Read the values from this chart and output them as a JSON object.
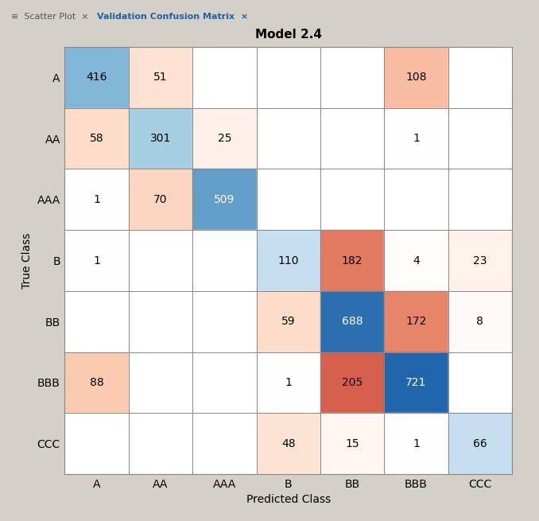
{
  "title": "Model 2.4",
  "classes": [
    "A",
    "AA",
    "AAA",
    "B",
    "BB",
    "BBB",
    "CCC"
  ],
  "matrix": [
    [
      416,
      51,
      0,
      0,
      0,
      108,
      0
    ],
    [
      58,
      301,
      25,
      0,
      0,
      1,
      0
    ],
    [
      1,
      70,
      509,
      0,
      0,
      0,
      0
    ],
    [
      1,
      0,
      0,
      110,
      182,
      4,
      23
    ],
    [
      0,
      0,
      0,
      59,
      688,
      172,
      8
    ],
    [
      88,
      0,
      0,
      1,
      205,
      721,
      0
    ],
    [
      0,
      0,
      0,
      48,
      15,
      1,
      66
    ]
  ],
  "xlabel": "Predicted Class",
  "ylabel": "True Class",
  "fig_bg_color": "#d4d0c8",
  "tab_bg": "#d4d0c8",
  "tab_active_bg": "#e8e4dc",
  "plot_bg_color": "#e8e4dc",
  "matrix_bg": "#ffffff",
  "title_fontsize": 11,
  "label_fontsize": 10,
  "tick_fontsize": 10,
  "value_fontsize": 10,
  "diagonal_blue_dark": "#2166ac",
  "diagonal_blue_medium": "#4fa3d1",
  "diagonal_blue_light": "#92c5de",
  "off_diag_pink_strong": "#d6604d",
  "off_diag_pink_medium": "#f4a582",
  "off_diag_pink_light": "#fddbc7",
  "ccc_diag_color": "#c5dff0",
  "b_diag_color": "#c5dff0",
  "tab1_label": "Scatter Plot",
  "tab2_label": "Validation Confusion Matrix"
}
